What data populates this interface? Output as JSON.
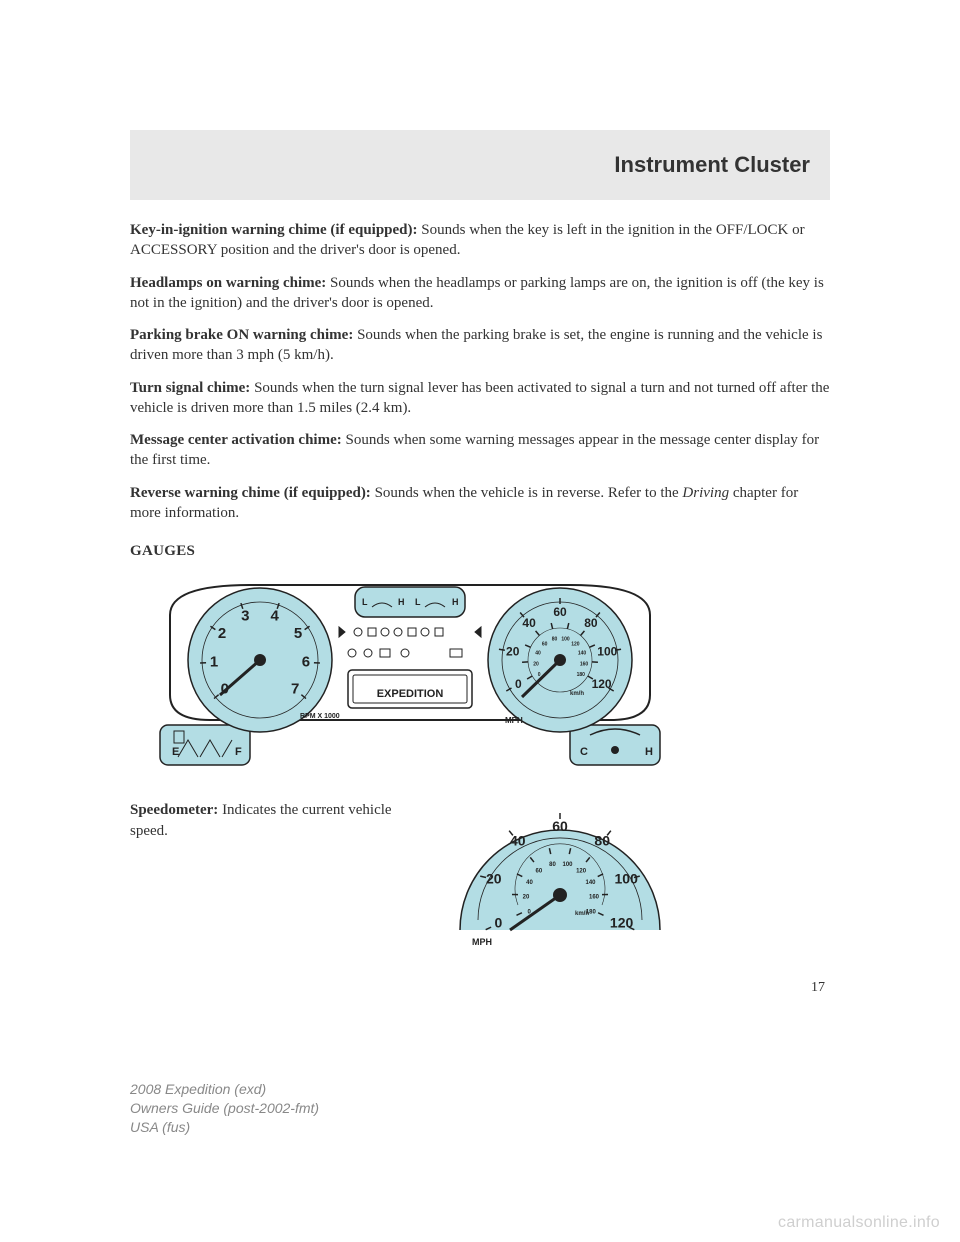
{
  "header": {
    "title": "Instrument Cluster"
  },
  "paragraphs": {
    "p1_b": "Key-in-ignition warning chime (if equipped):",
    "p1_t": " Sounds when the key is left in the ignition in the OFF/LOCK or ACCESSORY position and the driver's door is opened.",
    "p2_b": "Headlamps on warning chime:",
    "p2_t": " Sounds when the headlamps or parking lamps are on, the ignition is off (the key is not in the ignition) and the driver's door is opened.",
    "p3_b": "Parking brake ON warning chime:",
    "p3_t": " Sounds when the parking brake is set, the engine is running and the vehicle is driven more than 3 mph (5 km/h).",
    "p4_b": "Turn signal chime:",
    "p4_t": " Sounds when the turn signal lever has been activated to signal a turn and not turned off after the vehicle is driven more than 1.5 miles (2.4 km).",
    "p5_b": "Message center activation chime:",
    "p5_t": " Sounds when some warning messages appear in the message center display for the first time.",
    "p6_b": "Reverse warning chime (if equipped):",
    "p6_t1": " Sounds when the vehicle is in reverse. Refer to the ",
    "p6_i": "Driving",
    "p6_t2": " chapter for more information."
  },
  "section_heading": "GAUGES",
  "speedometer": {
    "label_b": "Speedometer:",
    "label_t": " Indicates the current vehicle speed."
  },
  "page_number": "17",
  "footer": {
    "line1_a": "2008 Expedition",
    "line1_b": " (exd)",
    "line2_a": "Owners Guide (post-2002-fmt)",
    "line3_a": "USA",
    "line3_b": " (fus)"
  },
  "watermark": "carmanualsonline.info",
  "cluster": {
    "tach_numbers": [
      "0",
      "1",
      "2",
      "3",
      "4",
      "5",
      "6",
      "7"
    ],
    "tach_label": "RPM X 1000",
    "speed_numbers": [
      "0",
      "20",
      "40",
      "60",
      "80",
      "100",
      "120"
    ],
    "speed_inner": [
      "0",
      "20",
      "40",
      "60",
      "80",
      "100",
      "120",
      "140",
      "160",
      "180"
    ],
    "mph": "MPH",
    "kmh": "km/h",
    "expedition": "EXPEDITION",
    "fuel": {
      "e": "E",
      "f": "F"
    },
    "temp": {
      "c": "C",
      "h": "H"
    },
    "top": {
      "l": "L",
      "h": "H"
    },
    "colors": {
      "face": "#b3dde4",
      "stroke": "#222222",
      "accent_dark": "#1a5a6a"
    }
  }
}
